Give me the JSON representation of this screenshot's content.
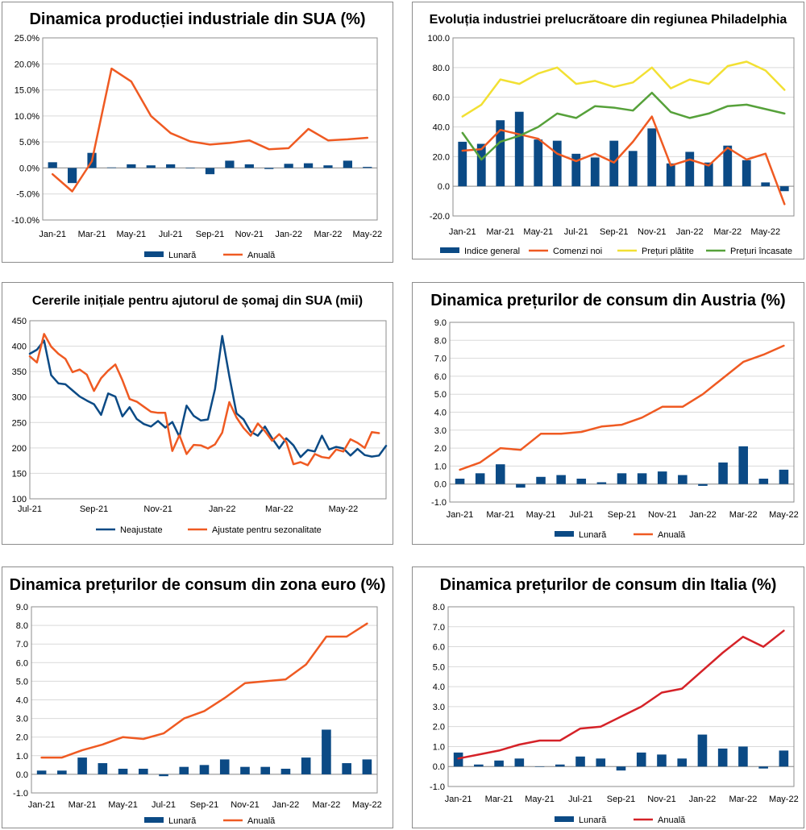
{
  "colors": {
    "navy": "#0b4a85",
    "orange": "#ef5a22",
    "yellow": "#f2e033",
    "green": "#56a13a",
    "red": "#d52228",
    "grid": "#d9d9d9",
    "axis": "#8c8c8c"
  },
  "chart_data": [
    {
      "id": "c1",
      "type": "bar+line",
      "title": "Dinamica producției industriale din SUA (%)",
      "categories": [
        "Jan-21",
        "Feb-21",
        "Mar-21",
        "Apr-21",
        "May-21",
        "Jun-21",
        "Jul-21",
        "Aug-21",
        "Sep-21",
        "Oct-21",
        "Nov-21",
        "Dec-21",
        "Jan-22",
        "Feb-22",
        "Mar-22",
        "Apr-22",
        "May-22"
      ],
      "x_tick_labels": [
        "Jan-21",
        "",
        "Mar-21",
        "",
        "May-21",
        "",
        "Jul-21",
        "",
        "Sep-21",
        "",
        "Nov-21",
        "",
        "Jan-22",
        "",
        "Mar-22",
        "",
        "May-22"
      ],
      "y_ticks": [
        "-10.0%",
        "-5.0%",
        "0.0%",
        "5.0%",
        "10.0%",
        "15.0%",
        "20.0%",
        "25.0%"
      ],
      "ylim": [
        -10,
        25
      ],
      "ystep": 5,
      "series": [
        {
          "name": "Lunară",
          "kind": "bar",
          "color": "#0b4a85",
          "values": [
            1.1,
            -2.9,
            2.9,
            0.1,
            0.7,
            0.5,
            0.7,
            -0.1,
            -1.2,
            1.4,
            0.7,
            -0.2,
            0.8,
            0.9,
            0.5,
            1.4,
            0.2
          ]
        },
        {
          "name": "Anuală",
          "kind": "line",
          "color": "#ef5a22",
          "values": [
            -1.2,
            -4.5,
            1.3,
            19.1,
            16.6,
            10.0,
            6.7,
            5.1,
            4.5,
            4.8,
            5.3,
            3.6,
            3.8,
            7.5,
            5.3,
            5.5,
            5.8
          ]
        }
      ],
      "legend": [
        "Lunară",
        "Anuală"
      ]
    },
    {
      "id": "c2",
      "type": "bar+line",
      "title": "Evoluția industriei prelucrătoare din regiunea Philadelphia",
      "categories": [
        "Jan-21",
        "Feb-21",
        "Mar-21",
        "Apr-21",
        "May-21",
        "Jun-21",
        "Jul-21",
        "Aug-21",
        "Sep-21",
        "Oct-21",
        "Nov-21",
        "Dec-21",
        "Jan-22",
        "Feb-22",
        "Mar-22",
        "Apr-22",
        "May-22",
        "Jun-22"
      ],
      "x_tick_labels": [
        "Jan-21",
        "",
        "Mar-21",
        "",
        "May-21",
        "",
        "Jul-21",
        "",
        "Sep-21",
        "",
        "Nov-21",
        "",
        "Jan-22",
        "",
        "Mar-22",
        "",
        "May-22",
        ""
      ],
      "y_ticks": [
        "-20.0",
        "0.0",
        "20.0",
        "40.0",
        "60.0",
        "80.0",
        "100.0"
      ],
      "ylim": [
        -20,
        100
      ],
      "ystep": 20,
      "series": [
        {
          "name": "Indice general",
          "kind": "bar",
          "color": "#0b4a85",
          "values": [
            30,
            28.6,
            44.5,
            50.2,
            31.5,
            30.7,
            21.9,
            19.4,
            30.7,
            23.8,
            39.0,
            15.4,
            23.2,
            16.0,
            27.4,
            17.6,
            2.6,
            -3.3
          ]
        },
        {
          "name": "Comenzi noi",
          "kind": "line",
          "color": "#ef5a22",
          "values": [
            24,
            25,
            38,
            35,
            32,
            22,
            17,
            22,
            16,
            30,
            47,
            14,
            18,
            14,
            26,
            18,
            22,
            -12
          ]
        },
        {
          "name": "Prețuri plătite",
          "kind": "line",
          "color": "#f2e033",
          "values": [
            47,
            55,
            72,
            69,
            76,
            80,
            69,
            71,
            67,
            70,
            80,
            66,
            72,
            69,
            81,
            84,
            78,
            65
          ]
        },
        {
          "name": "Prețuri încasate",
          "kind": "line",
          "color": "#56a13a",
          "values": [
            36,
            18,
            30,
            34,
            40,
            49,
            46,
            54,
            53,
            51,
            63,
            50,
            46,
            49,
            54,
            55,
            52,
            49
          ]
        }
      ],
      "legend": [
        "Indice general",
        "Comenzi noi",
        "Prețuri plătite",
        "Prețuri încasate"
      ]
    },
    {
      "id": "c3",
      "type": "line",
      "title": "Cererile inițiale pentru ajutorul de șomaj din SUA (mii)",
      "x_tick_labels": [
        "Jul-21",
        "Sep-21",
        "Nov-21",
        "Jan-22",
        "Mar-22",
        "May-22"
      ],
      "x_tick_positions": [
        0,
        9,
        18,
        27,
        35,
        44
      ],
      "y_ticks": [
        "100",
        "150",
        "200",
        "250",
        "300",
        "350",
        "400",
        "450"
      ],
      "ylim": [
        100,
        450
      ],
      "ystep": 50,
      "series": [
        {
          "name": "Neajustate",
          "kind": "line",
          "color": "#0b4a85",
          "values": [
            385,
            393,
            411,
            343,
            327,
            325,
            313,
            301,
            293,
            286,
            265,
            307,
            301,
            262,
            280,
            257,
            247,
            242,
            253,
            240,
            251,
            222,
            283,
            263,
            254,
            256,
            316,
            420,
            341,
            268,
            256,
            232,
            224,
            242,
            219,
            199,
            219,
            205,
            182,
            196,
            193,
            224,
            197,
            202,
            199,
            185,
            198,
            186,
            183,
            185,
            204
          ]
        },
        {
          "name": "Ajustate pentru sezonalitate",
          "kind": "line",
          "color": "#ef5a22",
          "values": [
            380,
            368,
            424,
            399,
            385,
            375,
            349,
            354,
            344,
            312,
            337,
            352,
            364,
            333,
            296,
            291,
            281,
            271,
            269,
            269,
            194,
            225,
            188,
            206,
            205,
            199,
            207,
            230,
            290,
            260,
            239,
            224,
            248,
            233,
            214,
            227,
            212,
            168,
            172,
            166,
            188,
            182,
            180,
            197,
            193,
            217,
            210,
            200,
            231,
            229
          ]
        }
      ],
      "legend": [
        "Neajustate",
        "Ajustate pentru sezonalitate"
      ]
    },
    {
      "id": "c4",
      "type": "bar+line",
      "title": "Dinamica prețurilor de consum din Austria (%)",
      "categories": [
        "Jan-21",
        "Feb-21",
        "Mar-21",
        "Apr-21",
        "May-21",
        "Jun-21",
        "Jul-21",
        "Aug-21",
        "Sep-21",
        "Oct-21",
        "Nov-21",
        "Dec-21",
        "Jan-22",
        "Feb-22",
        "Mar-22",
        "Apr-22",
        "May-22"
      ],
      "x_tick_labels": [
        "Jan-21",
        "",
        "Mar-21",
        "",
        "May-21",
        "",
        "Jul-21",
        "",
        "Sep-21",
        "",
        "Nov-21",
        "",
        "Jan-22",
        "",
        "Mar-22",
        "",
        "May-22"
      ],
      "y_ticks": [
        "-1.0",
        "0.0",
        "1.0",
        "2.0",
        "3.0",
        "4.0",
        "5.0",
        "6.0",
        "7.0",
        "8.0",
        "9.0"
      ],
      "ylim": [
        -1,
        9
      ],
      "ystep": 1,
      "series": [
        {
          "name": "Lunară",
          "kind": "bar",
          "color": "#0b4a85",
          "values": [
            0.3,
            0.6,
            1.1,
            -0.2,
            0.4,
            0.5,
            0.3,
            0.1,
            0.6,
            0.6,
            0.7,
            0.5,
            -0.1,
            1.2,
            2.1,
            0.3,
            0.8
          ]
        },
        {
          "name": "Anuală",
          "kind": "line",
          "color": "#ef5a22",
          "values": [
            0.8,
            1.2,
            2.0,
            1.9,
            2.8,
            2.8,
            2.9,
            3.2,
            3.3,
            3.7,
            4.3,
            4.3,
            5.0,
            5.9,
            6.8,
            7.2,
            7.7
          ]
        }
      ],
      "legend": [
        "Lunară",
        "Anuală"
      ]
    },
    {
      "id": "c5",
      "type": "bar+line",
      "title": "Dinamica prețurilor de consum din zona euro (%)",
      "categories": [
        "Jan-21",
        "Feb-21",
        "Mar-21",
        "Apr-21",
        "May-21",
        "Jun-21",
        "Jul-21",
        "Aug-21",
        "Sep-21",
        "Oct-21",
        "Nov-21",
        "Dec-21",
        "Jan-22",
        "Feb-22",
        "Mar-22",
        "Apr-22",
        "May-22"
      ],
      "x_tick_labels": [
        "Jan-21",
        "",
        "Mar-21",
        "",
        "May-21",
        "",
        "Jul-21",
        "",
        "Sep-21",
        "",
        "Nov-21",
        "",
        "Jan-22",
        "",
        "Mar-22",
        "",
        "May-22"
      ],
      "y_ticks": [
        "-1.0",
        "0.0",
        "1.0",
        "2.0",
        "3.0",
        "4.0",
        "5.0",
        "6.0",
        "7.0",
        "8.0",
        "9.0"
      ],
      "ylim": [
        -1,
        9
      ],
      "ystep": 1,
      "series": [
        {
          "name": "Lunară",
          "kind": "bar",
          "color": "#0b4a85",
          "values": [
            0.2,
            0.2,
            0.9,
            0.6,
            0.3,
            0.3,
            -0.1,
            0.4,
            0.5,
            0.8,
            0.4,
            0.4,
            0.3,
            0.9,
            2.4,
            0.6,
            0.8
          ]
        },
        {
          "name": "Anuală",
          "kind": "line",
          "color": "#ef5a22",
          "values": [
            0.9,
            0.9,
            1.3,
            1.6,
            2.0,
            1.9,
            2.2,
            3.0,
            3.4,
            4.1,
            4.9,
            5.0,
            5.1,
            5.9,
            7.4,
            7.4,
            8.1
          ]
        }
      ],
      "legend": [
        "Lunară",
        "Anuală"
      ]
    },
    {
      "id": "c6",
      "type": "bar+line",
      "title": "Dinamica prețurilor de consum din Italia (%)",
      "categories": [
        "Jan-21",
        "Feb-21",
        "Mar-21",
        "Apr-21",
        "May-21",
        "Jun-21",
        "Jul-21",
        "Aug-21",
        "Sep-21",
        "Oct-21",
        "Nov-21",
        "Dec-21",
        "Jan-22",
        "Feb-22",
        "Mar-22",
        "Apr-22",
        "May-22"
      ],
      "x_tick_labels": [
        "Jan-21",
        "",
        "Mar-21",
        "",
        "May-21",
        "",
        "Jul-21",
        "",
        "Sep-21",
        "",
        "Nov-21",
        "",
        "Jan-22",
        "",
        "Mar-22",
        "",
        "May-22"
      ],
      "y_ticks": [
        "-1.0",
        "0.0",
        "1.0",
        "2.0",
        "3.0",
        "4.0",
        "5.0",
        "6.0",
        "7.0",
        "8.0"
      ],
      "ylim": [
        -1,
        8
      ],
      "ystep": 1,
      "series": [
        {
          "name": "Lunară",
          "kind": "bar",
          "color": "#0b4a85",
          "values": [
            0.7,
            0.1,
            0.3,
            0.4,
            0.0,
            0.1,
            0.5,
            0.4,
            -0.2,
            0.7,
            0.6,
            0.4,
            1.6,
            0.9,
            1.0,
            -0.1,
            0.8
          ]
        },
        {
          "name": "Anuală",
          "kind": "line",
          "color": "#d52228",
          "values": [
            0.4,
            0.6,
            0.8,
            1.1,
            1.3,
            1.3,
            1.9,
            2.0,
            2.5,
            3.0,
            3.7,
            3.9,
            4.8,
            5.7,
            6.5,
            6.0,
            6.8
          ]
        }
      ],
      "legend": [
        "Lunară",
        "Anuală"
      ]
    }
  ]
}
